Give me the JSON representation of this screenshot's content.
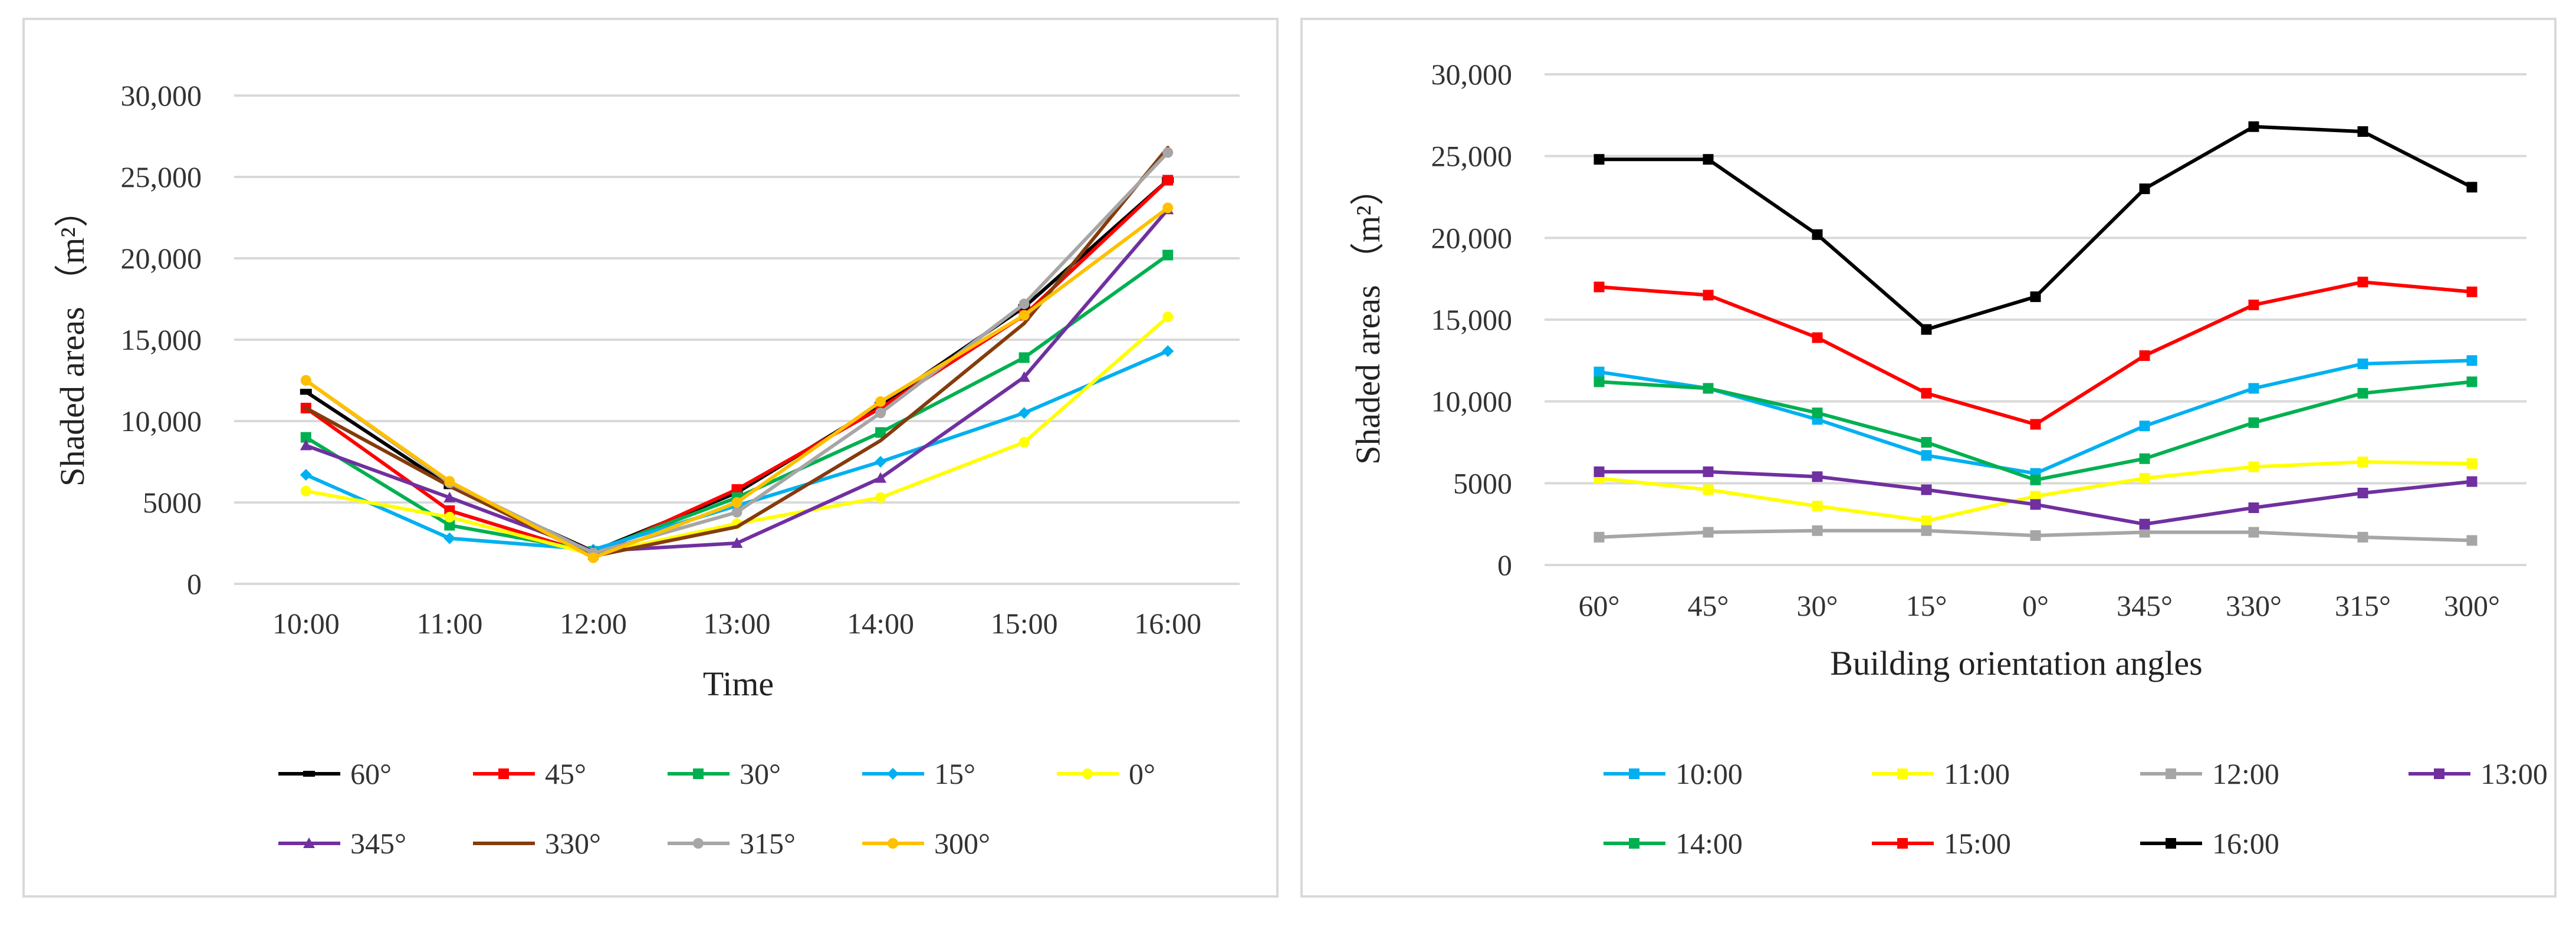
{
  "chart_data": [
    {
      "type": "line",
      "title": "",
      "xlabel": "Time",
      "ylabel": "Shaded areas （m²）",
      "ylim": [
        0,
        30000
      ],
      "yticks": [
        0,
        5000,
        10000,
        15000,
        20000,
        25000,
        30000
      ],
      "ytick_labels": [
        "0",
        "5000",
        "10,000",
        "15,000",
        "20,000",
        "25,000",
        "30,000"
      ],
      "categories": [
        "10:00",
        "11:00",
        "12:00",
        "13:00",
        "14:00",
        "15:00",
        "16:00"
      ],
      "grid": true,
      "legend_position": "bottom",
      "series": [
        {
          "name": "60°",
          "color": "#000000",
          "marker": "dash",
          "values": [
            11800,
            6000,
            2000,
            5600,
            11000,
            17000,
            24800
          ]
        },
        {
          "name": "45°",
          "color": "#ff0000",
          "marker": "square",
          "values": [
            10800,
            4500,
            1800,
            5800,
            10800,
            16500,
            24800
          ]
        },
        {
          "name": "30°",
          "color": "#00b050",
          "marker": "square",
          "values": [
            9000,
            3600,
            2000,
            5300,
            9300,
            13900,
            20200
          ]
        },
        {
          "name": "15°",
          "color": "#00b0f0",
          "marker": "diamond",
          "values": [
            6700,
            2800,
            2100,
            4800,
            7500,
            10500,
            14300
          ]
        },
        {
          "name": "0°",
          "color": "#ffff00",
          "marker": "circle",
          "values": [
            5700,
            4100,
            1800,
            3700,
            5300,
            8700,
            16400
          ]
        },
        {
          "name": "345°",
          "color": "#7030a0",
          "marker": "triangle",
          "values": [
            8500,
            5300,
            2000,
            2500,
            6500,
            12700,
            23000
          ]
        },
        {
          "name": "330°",
          "color": "#843c0c",
          "marker": "none",
          "values": [
            10800,
            6000,
            1700,
            3500,
            8800,
            16000,
            26800
          ]
        },
        {
          "name": "315°",
          "color": "#a6a6a6",
          "marker": "circle",
          "values": [
            12500,
            6200,
            1900,
            4400,
            10500,
            17200,
            26500
          ]
        },
        {
          "name": "300°",
          "color": "#ffc000",
          "marker": "circle",
          "values": [
            12500,
            6300,
            1600,
            5000,
            11200,
            16500,
            23100
          ]
        }
      ]
    },
    {
      "type": "line",
      "title": "",
      "xlabel": "Building orientation angles",
      "ylabel": "Shaded areas （m²）",
      "ylim": [
        0,
        30000
      ],
      "yticks": [
        0,
        5000,
        10000,
        15000,
        20000,
        25000,
        30000
      ],
      "ytick_labels": [
        "0",
        "5000",
        "10,000",
        "15,000",
        "20,000",
        "25,000",
        "30,000"
      ],
      "categories": [
        "60°",
        "45°",
        "30°",
        "15°",
        "0°",
        "345°",
        "330°",
        "315°",
        "300°"
      ],
      "grid": true,
      "legend_position": "bottom",
      "series": [
        {
          "name": "10:00",
          "color": "#00b0f0",
          "marker": "square",
          "values": [
            11800,
            10800,
            8900,
            6700,
            5600,
            8500,
            10800,
            12300,
            12500
          ]
        },
        {
          "name": "11:00",
          "color": "#ffff00",
          "marker": "square",
          "values": [
            5300,
            4600,
            3600,
            2700,
            4200,
            5300,
            6000,
            6300,
            6200
          ]
        },
        {
          "name": "12:00",
          "color": "#a6a6a6",
          "marker": "square",
          "values": [
            1700,
            2000,
            2100,
            2100,
            1800,
            2000,
            2000,
            1700,
            1500
          ]
        },
        {
          "name": "13:00",
          "color": "#7030a0",
          "marker": "square",
          "values": [
            5700,
            5700,
            5400,
            4600,
            3700,
            2500,
            3500,
            4400,
            5100
          ]
        },
        {
          "name": "14:00",
          "color": "#00b050",
          "marker": "square",
          "values": [
            11200,
            10800,
            9300,
            7500,
            5200,
            6500,
            8700,
            10500,
            11200
          ]
        },
        {
          "name": "15:00",
          "color": "#ff0000",
          "marker": "square",
          "values": [
            17000,
            16500,
            13900,
            10500,
            8600,
            12800,
            15900,
            17300,
            16700
          ]
        },
        {
          "name": "16:00",
          "color": "#000000",
          "marker": "square",
          "values": [
            24800,
            24800,
            20200,
            14400,
            16400,
            23000,
            26800,
            26500,
            23100
          ]
        }
      ]
    }
  ]
}
